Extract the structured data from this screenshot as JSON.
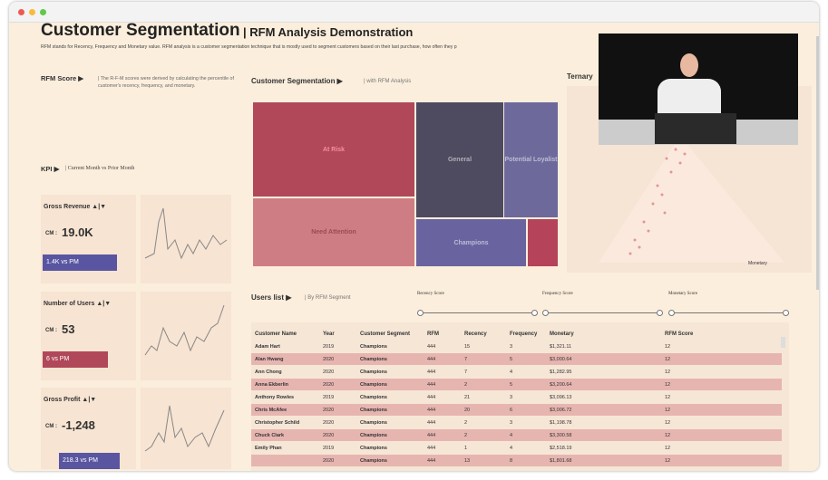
{
  "header": {
    "title": "Customer Segmentation",
    "subtitle": "| RFM Analysis Demonstration",
    "description": "RFM stands for Recency, Frequency and Monetary value. RFM analysis is a customer segmentation technique that is mostly used to segment customers based on their last purchase, how often they p"
  },
  "rfm_score": {
    "title": "RFM Score ▶",
    "note": "| The R-F-M scores were derived by calculating the percentile of customer's recency, frequency, and monetary."
  },
  "kpi": {
    "title": "KPI ▶",
    "note": "| Current Month vs Prior Month",
    "cards": [
      {
        "label": "Gross Revenue ▲|▼",
        "prefix": "CM :",
        "value": "19.0K",
        "delta": "1.4K vs PM"
      },
      {
        "label": "Number of Users ▲|▼",
        "prefix": "CM :",
        "value": "53",
        "delta": "6 vs PM"
      },
      {
        "label": "Gross Profit ▲|▼",
        "prefix": "CM :",
        "value": "-1,248",
        "delta": "218.3 vs PM"
      }
    ]
  },
  "segmentation": {
    "title": "Customer Segmentation ▶",
    "note": "| with RFM Analysis",
    "segments": [
      "At Risk",
      "Need Attention",
      "General",
      "Potential Loyalist",
      "Champions"
    ]
  },
  "ternary": {
    "title": "Ternary",
    "axis": "Monetary"
  },
  "users_list": {
    "title": "Users list ▶",
    "note": "| By RFM Segment",
    "filters": [
      "Recency Score",
      "Frequency Score",
      "Monetary Score"
    ],
    "table": {
      "columns": [
        "Customer Name",
        "Year",
        "Customer Segment",
        "RFM",
        "Recency",
        "Frequency",
        "Monetary",
        "RFM Score"
      ],
      "rows": [
        [
          "Adam Hart",
          "2019",
          "Champions",
          "444",
          "15",
          "3",
          "$1,321.11",
          "12"
        ],
        [
          "Alan Hwang",
          "2020",
          "Champions",
          "444",
          "7",
          "5",
          "$3,000.64",
          "12"
        ],
        [
          "Ann Chong",
          "2020",
          "Champions",
          "444",
          "7",
          "4",
          "$1,282.95",
          "12"
        ],
        [
          "Anna Ekberlin",
          "2020",
          "Champions",
          "444",
          "2",
          "5",
          "$3,200.64",
          "12"
        ],
        [
          "Anthony Rowles",
          "2019",
          "Champions",
          "444",
          "21",
          "3",
          "$3,096.13",
          "12"
        ],
        [
          "Chris McAfee",
          "2020",
          "Champions",
          "444",
          "20",
          "6",
          "$3,006.72",
          "12"
        ],
        [
          "Christopher Schild",
          "2020",
          "Champions",
          "444",
          "2",
          "3",
          "$1,198.78",
          "12"
        ],
        [
          "Chuck Clark",
          "2020",
          "Champions",
          "444",
          "2",
          "4",
          "$3,300.58",
          "12"
        ],
        [
          "Emily Phan",
          "2019",
          "Champions",
          "444",
          "1",
          "4",
          "$2,518.19",
          "12"
        ],
        [
          "",
          "2020",
          "Champions",
          "444",
          "13",
          "8",
          "$1,801.68",
          "12"
        ]
      ]
    }
  }
}
